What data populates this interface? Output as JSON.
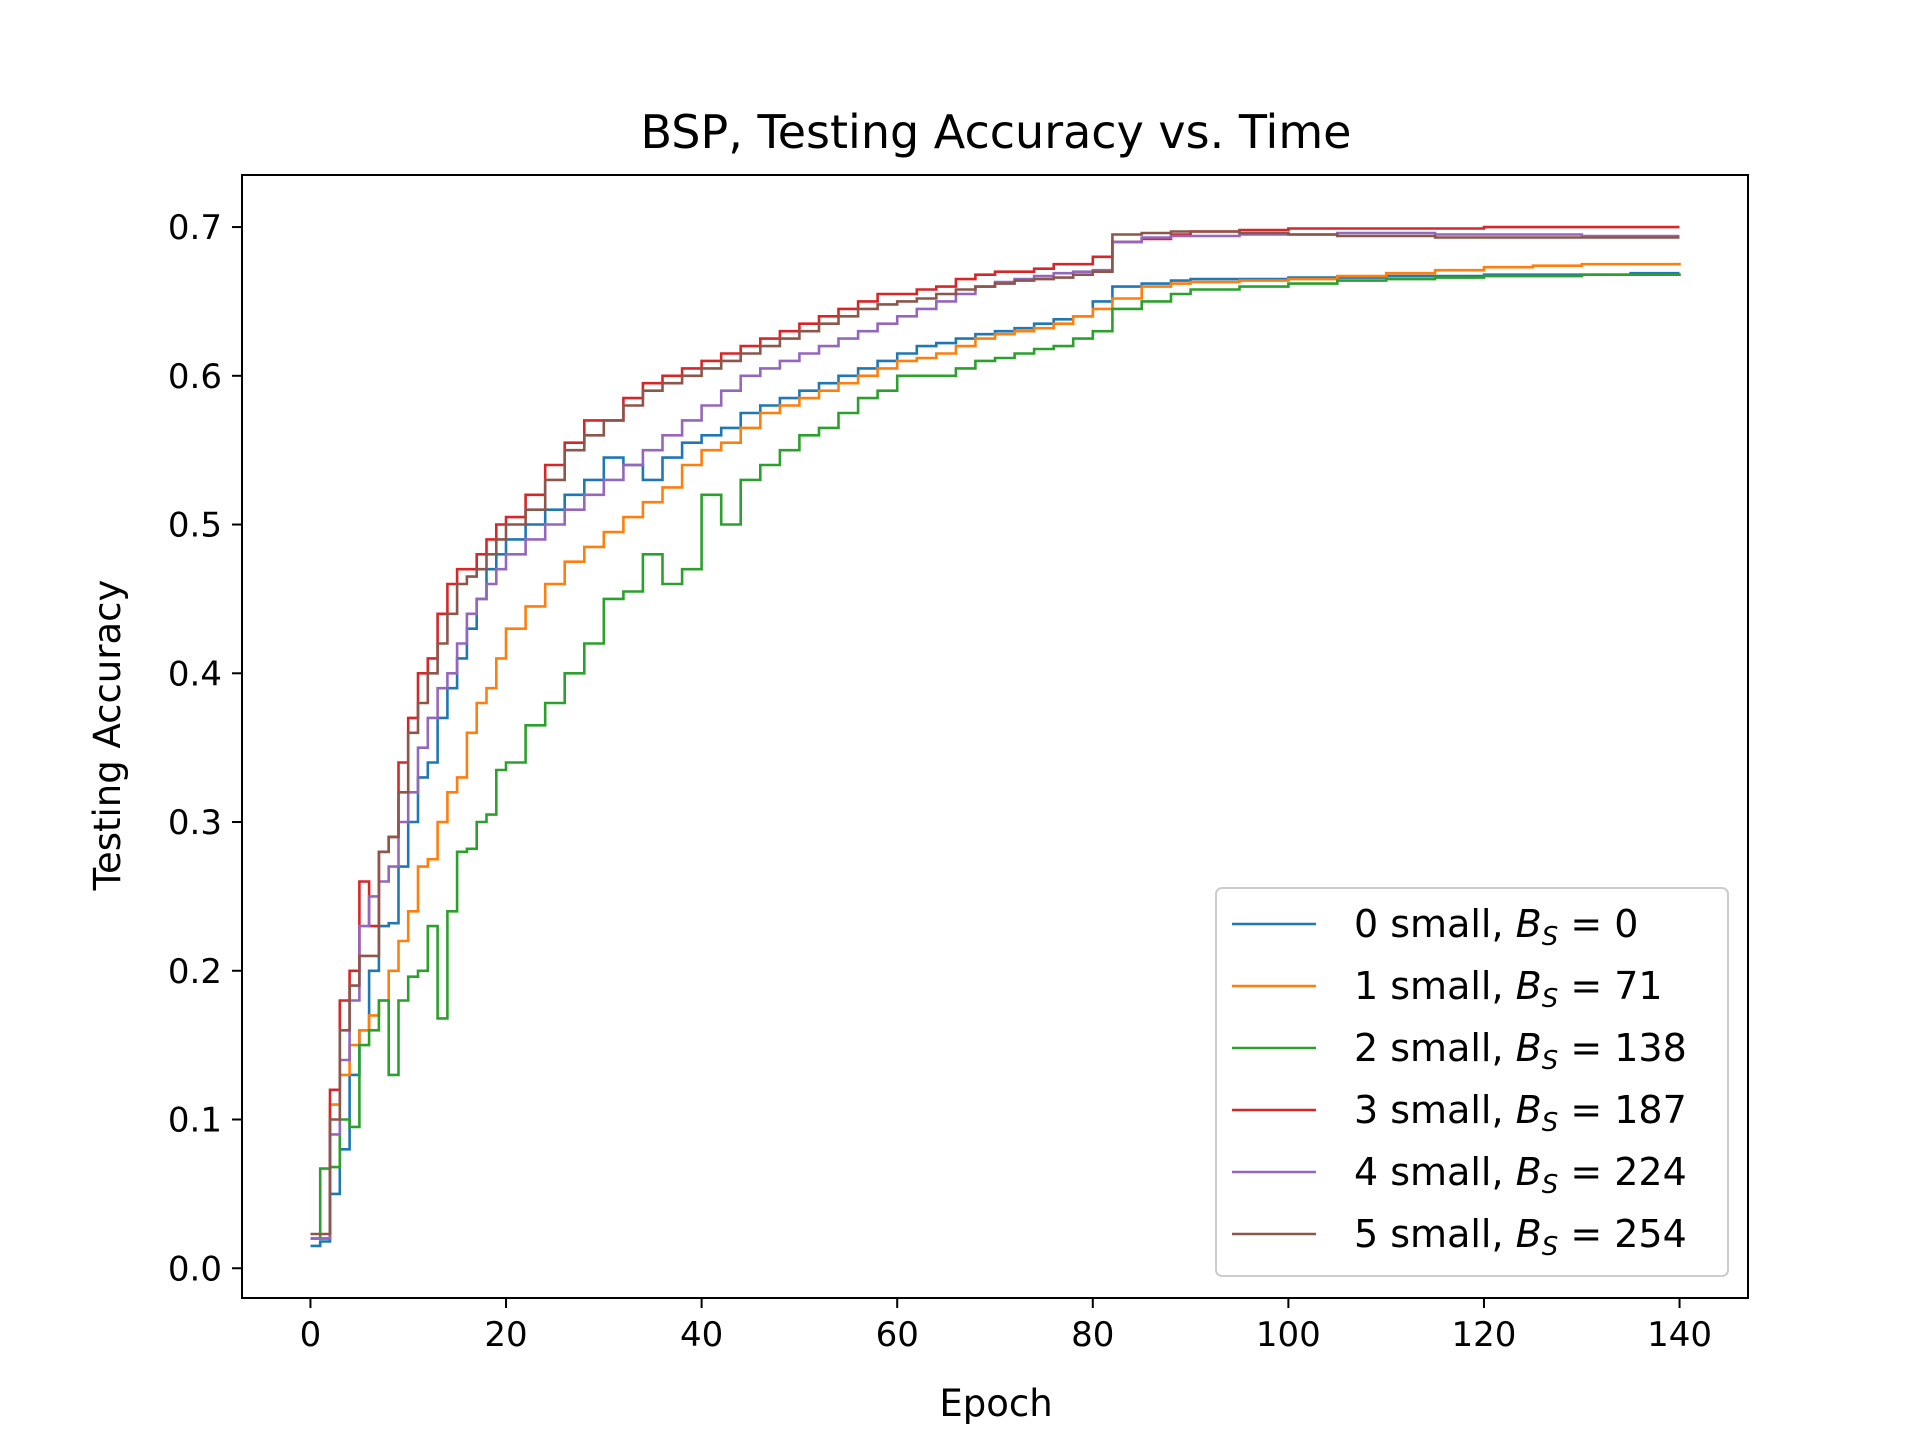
{
  "chart_data": {
    "type": "line",
    "title": "BSP, Testing Accuracy vs. Time",
    "xlabel": "Epoch",
    "ylabel": "Testing Accuracy",
    "xlim": [
      -7,
      147
    ],
    "ylim": [
      -0.02,
      0.735
    ],
    "xticks": [
      0,
      20,
      40,
      60,
      80,
      100,
      120,
      140
    ],
    "yticks": [
      0.0,
      0.1,
      0.2,
      0.3,
      0.4,
      0.5,
      0.6,
      0.7
    ],
    "xtick_labels": [
      "0",
      "20",
      "40",
      "60",
      "80",
      "100",
      "120",
      "140"
    ],
    "ytick_labels": [
      "0.0",
      "0.1",
      "0.2",
      "0.3",
      "0.4",
      "0.5",
      "0.6",
      "0.7"
    ],
    "grid": false,
    "legend_position": "lower-right",
    "step": true,
    "series": [
      {
        "name": "0 small, B_S = 0",
        "legend_prefix": "0 small, ",
        "legend_sym": "B",
        "legend_sub": "S",
        "legend_value": " = 0",
        "color": "#1f77b4",
        "x": [
          0,
          1,
          2,
          3,
          4,
          5,
          6,
          7,
          8,
          9,
          10,
          11,
          12,
          13,
          14,
          15,
          16,
          17,
          18,
          19,
          20,
          22,
          24,
          26,
          28,
          30,
          32,
          34,
          36,
          38,
          40,
          42,
          44,
          46,
          48,
          50,
          52,
          54,
          56,
          58,
          60,
          62,
          64,
          66,
          68,
          70,
          72,
          74,
          76,
          78,
          80,
          82,
          85,
          88,
          90,
          95,
          100,
          105,
          110,
          115,
          120,
          125,
          130,
          135,
          140
        ],
        "y": [
          0.015,
          0.018,
          0.05,
          0.08,
          0.13,
          0.16,
          0.2,
          0.23,
          0.232,
          0.27,
          0.3,
          0.33,
          0.34,
          0.37,
          0.39,
          0.41,
          0.43,
          0.45,
          0.47,
          0.48,
          0.49,
          0.5,
          0.51,
          0.52,
          0.53,
          0.545,
          0.54,
          0.53,
          0.545,
          0.555,
          0.56,
          0.565,
          0.575,
          0.58,
          0.585,
          0.59,
          0.595,
          0.6,
          0.605,
          0.61,
          0.615,
          0.62,
          0.622,
          0.625,
          0.628,
          0.63,
          0.632,
          0.635,
          0.638,
          0.64,
          0.65,
          0.66,
          0.662,
          0.664,
          0.665,
          0.665,
          0.666,
          0.666,
          0.667,
          0.667,
          0.668,
          0.668,
          0.668,
          0.669,
          0.669
        ]
      },
      {
        "name": "1 small, B_S = 71",
        "legend_prefix": "1 small, ",
        "legend_sym": "B",
        "legend_sub": "S",
        "legend_value": " = 71",
        "color": "#ff7f0e",
        "x": [
          0,
          1,
          2,
          3,
          4,
          5,
          6,
          7,
          8,
          9,
          10,
          11,
          12,
          13,
          14,
          15,
          16,
          17,
          18,
          19,
          20,
          22,
          24,
          26,
          28,
          30,
          32,
          34,
          36,
          38,
          40,
          42,
          44,
          46,
          48,
          50,
          52,
          54,
          56,
          58,
          60,
          62,
          64,
          66,
          68,
          70,
          72,
          74,
          76,
          78,
          80,
          82,
          85,
          88,
          90,
          95,
          100,
          105,
          110,
          115,
          120,
          125,
          130,
          135,
          140
        ],
        "y": [
          0.02,
          0.02,
          0.11,
          0.13,
          0.15,
          0.16,
          0.17,
          0.18,
          0.2,
          0.22,
          0.24,
          0.27,
          0.275,
          0.3,
          0.32,
          0.33,
          0.36,
          0.38,
          0.39,
          0.41,
          0.43,
          0.445,
          0.46,
          0.475,
          0.485,
          0.495,
          0.505,
          0.515,
          0.525,
          0.54,
          0.55,
          0.555,
          0.565,
          0.575,
          0.58,
          0.585,
          0.59,
          0.595,
          0.6,
          0.605,
          0.61,
          0.612,
          0.615,
          0.62,
          0.625,
          0.628,
          0.63,
          0.632,
          0.635,
          0.64,
          0.645,
          0.652,
          0.66,
          0.662,
          0.663,
          0.664,
          0.665,
          0.667,
          0.669,
          0.671,
          0.673,
          0.674,
          0.675,
          0.675,
          0.676
        ]
      },
      {
        "name": "2 small, B_S = 138",
        "legend_prefix": "2 small, ",
        "legend_sym": "B",
        "legend_sub": "S",
        "legend_value": " = 138",
        "color": "#2ca02c",
        "x": [
          0,
          1,
          2,
          3,
          4,
          5,
          6,
          7,
          8,
          9,
          10,
          11,
          12,
          13,
          14,
          15,
          16,
          17,
          18,
          19,
          20,
          22,
          24,
          26,
          28,
          30,
          32,
          34,
          36,
          38,
          40,
          42,
          44,
          46,
          48,
          50,
          52,
          54,
          56,
          58,
          60,
          62,
          64,
          66,
          68,
          70,
          72,
          74,
          76,
          78,
          80,
          82,
          85,
          88,
          90,
          95,
          100,
          105,
          110,
          115,
          120,
          125,
          130,
          135,
          140
        ],
        "y": [
          0.02,
          0.067,
          0.068,
          0.1,
          0.095,
          0.15,
          0.16,
          0.18,
          0.13,
          0.18,
          0.196,
          0.2,
          0.23,
          0.168,
          0.24,
          0.28,
          0.282,
          0.3,
          0.305,
          0.335,
          0.34,
          0.365,
          0.38,
          0.4,
          0.42,
          0.45,
          0.455,
          0.48,
          0.46,
          0.47,
          0.52,
          0.5,
          0.53,
          0.54,
          0.55,
          0.56,
          0.565,
          0.575,
          0.585,
          0.59,
          0.6,
          0.6,
          0.6,
          0.605,
          0.61,
          0.612,
          0.615,
          0.618,
          0.62,
          0.625,
          0.63,
          0.645,
          0.65,
          0.655,
          0.658,
          0.66,
          0.662,
          0.664,
          0.665,
          0.666,
          0.667,
          0.667,
          0.668,
          0.668,
          0.669
        ]
      },
      {
        "name": "3 small, B_S = 187",
        "legend_prefix": "3 small, ",
        "legend_sym": "B",
        "legend_sub": "S",
        "legend_value": " = 187",
        "color": "#d62728",
        "x": [
          0,
          1,
          2,
          3,
          4,
          5,
          6,
          7,
          8,
          9,
          10,
          11,
          12,
          13,
          14,
          15,
          16,
          17,
          18,
          19,
          20,
          22,
          24,
          26,
          28,
          30,
          32,
          34,
          36,
          38,
          40,
          42,
          44,
          46,
          48,
          50,
          52,
          54,
          56,
          58,
          60,
          62,
          64,
          66,
          68,
          70,
          72,
          74,
          76,
          78,
          80,
          82,
          85,
          88,
          90,
          95,
          100,
          105,
          110,
          115,
          120,
          125,
          130,
          135,
          140
        ],
        "y": [
          0.02,
          0.02,
          0.12,
          0.18,
          0.2,
          0.26,
          0.23,
          0.28,
          0.29,
          0.34,
          0.37,
          0.4,
          0.41,
          0.44,
          0.46,
          0.47,
          0.47,
          0.48,
          0.49,
          0.5,
          0.505,
          0.52,
          0.54,
          0.555,
          0.57,
          0.57,
          0.585,
          0.595,
          0.6,
          0.605,
          0.61,
          0.615,
          0.62,
          0.625,
          0.63,
          0.635,
          0.64,
          0.645,
          0.65,
          0.655,
          0.655,
          0.658,
          0.66,
          0.665,
          0.668,
          0.67,
          0.67,
          0.672,
          0.675,
          0.675,
          0.68,
          0.69,
          0.692,
          0.695,
          0.697,
          0.698,
          0.699,
          0.699,
          0.699,
          0.699,
          0.7,
          0.7,
          0.7,
          0.7,
          0.7
        ]
      },
      {
        "name": "4 small, B_S = 224",
        "legend_prefix": "4 small, ",
        "legend_sym": "B",
        "legend_sub": "S",
        "legend_value": " = 224",
        "color": "#9467bd",
        "x": [
          0,
          1,
          2,
          3,
          4,
          5,
          6,
          7,
          8,
          9,
          10,
          11,
          12,
          13,
          14,
          15,
          16,
          17,
          18,
          19,
          20,
          22,
          24,
          26,
          28,
          30,
          32,
          34,
          36,
          38,
          40,
          42,
          44,
          46,
          48,
          50,
          52,
          54,
          56,
          58,
          60,
          62,
          64,
          66,
          68,
          70,
          72,
          74,
          76,
          78,
          80,
          82,
          85,
          88,
          90,
          95,
          100,
          105,
          110,
          115,
          120,
          125,
          130,
          135,
          140
        ],
        "y": [
          0.02,
          0.02,
          0.09,
          0.14,
          0.18,
          0.23,
          0.25,
          0.26,
          0.27,
          0.3,
          0.32,
          0.35,
          0.37,
          0.39,
          0.4,
          0.42,
          0.44,
          0.45,
          0.46,
          0.47,
          0.48,
          0.49,
          0.5,
          0.51,
          0.52,
          0.53,
          0.54,
          0.55,
          0.56,
          0.57,
          0.58,
          0.59,
          0.6,
          0.605,
          0.61,
          0.615,
          0.62,
          0.625,
          0.63,
          0.635,
          0.64,
          0.645,
          0.65,
          0.655,
          0.66,
          0.663,
          0.665,
          0.667,
          0.669,
          0.67,
          0.671,
          0.69,
          0.693,
          0.694,
          0.694,
          0.695,
          0.695,
          0.696,
          0.696,
          0.695,
          0.695,
          0.695,
          0.694,
          0.694,
          0.694
        ]
      },
      {
        "name": "5 small, B_S = 254",
        "legend_prefix": "5 small, ",
        "legend_sym": "B",
        "legend_sub": "S",
        "legend_value": " = 254",
        "color": "#8c564b",
        "x": [
          0,
          1,
          2,
          3,
          4,
          5,
          6,
          7,
          8,
          9,
          10,
          11,
          12,
          13,
          14,
          15,
          16,
          17,
          18,
          19,
          20,
          22,
          24,
          26,
          28,
          30,
          32,
          34,
          36,
          38,
          40,
          42,
          44,
          46,
          48,
          50,
          52,
          54,
          56,
          58,
          60,
          62,
          64,
          66,
          68,
          70,
          72,
          74,
          76,
          78,
          80,
          82,
          85,
          88,
          90,
          95,
          100,
          105,
          110,
          115,
          120,
          125,
          130,
          135,
          140
        ],
        "y": [
          0.023,
          0.023,
          0.1,
          0.16,
          0.19,
          0.21,
          0.21,
          0.28,
          0.29,
          0.32,
          0.36,
          0.38,
          0.4,
          0.42,
          0.44,
          0.46,
          0.465,
          0.47,
          0.48,
          0.49,
          0.5,
          0.51,
          0.53,
          0.55,
          0.56,
          0.57,
          0.58,
          0.59,
          0.595,
          0.6,
          0.605,
          0.61,
          0.615,
          0.62,
          0.625,
          0.63,
          0.635,
          0.64,
          0.645,
          0.648,
          0.65,
          0.652,
          0.655,
          0.658,
          0.66,
          0.662,
          0.664,
          0.665,
          0.666,
          0.668,
          0.67,
          0.695,
          0.696,
          0.697,
          0.697,
          0.696,
          0.695,
          0.694,
          0.694,
          0.693,
          0.693,
          0.693,
          0.693,
          0.693,
          0.693
        ]
      }
    ]
  }
}
